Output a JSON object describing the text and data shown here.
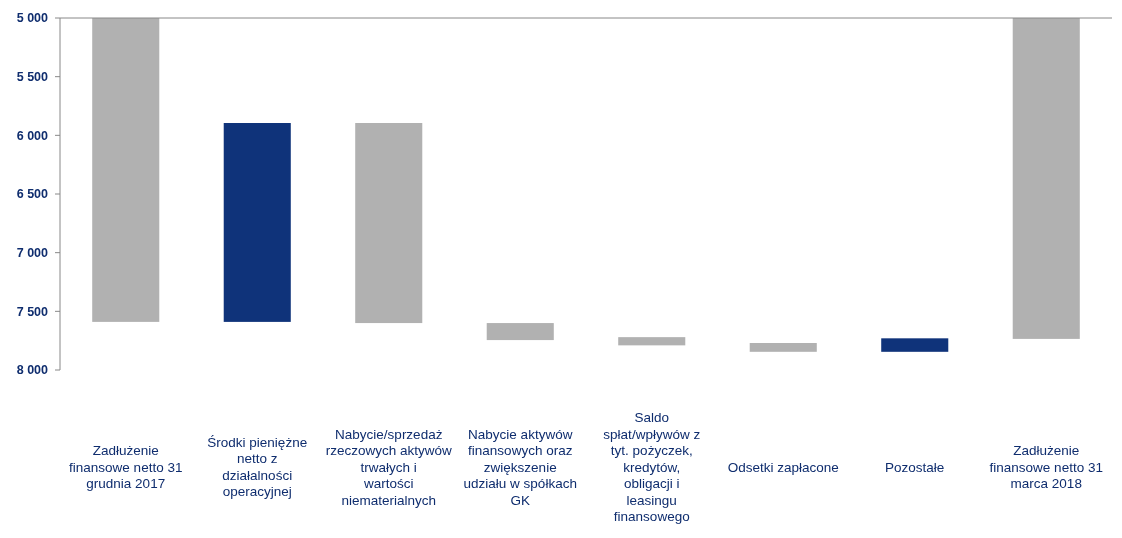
{
  "chart_data": {
    "type": "bar",
    "categories": [
      "Zadłużenie finansowe netto 31 grudnia 2017",
      "Środki pieniężne netto z działalności operacyjnej",
      "Nabycie/sprzedaż rzeczowych aktywów trwałych i wartości niematerialnych",
      "Nabycie aktywów finansowych oraz zwiększenie udziału w spółkach GK",
      "Saldo spłat/wpływów z tyt. pożyczek, kredytów, obligacji i leasingu finansowego",
      "Odsetki zapłacone",
      "Pozostałe",
      "Zadłużenie finansowe netto 31 marca 2018"
    ],
    "base": [
      5000,
      7590,
      5895,
      7600,
      7720,
      7770,
      7845,
      5000
    ],
    "values": [
      2590,
      -1695,
      1705,
      145,
      70,
      75,
      -115,
      2735
    ],
    "colors": [
      "#b1b1b1",
      "#0f337a",
      "#b1b1b1",
      "#b1b1b1",
      "#b1b1b1",
      "#b1b1b1",
      "#0f337a",
      "#b1b1b1"
    ],
    "ylim": [
      8000,
      5000
    ],
    "yticks": [
      {
        "value": 5000,
        "label": "5 000"
      },
      {
        "value": 5500,
        "label": "5 500"
      },
      {
        "value": 6000,
        "label": "6 000"
      },
      {
        "value": 6500,
        "label": "6 500"
      },
      {
        "value": 7000,
        "label": "7 000"
      },
      {
        "value": 7500,
        "label": "7 500"
      },
      {
        "value": 8000,
        "label": "8 000"
      }
    ],
    "grid": false
  }
}
